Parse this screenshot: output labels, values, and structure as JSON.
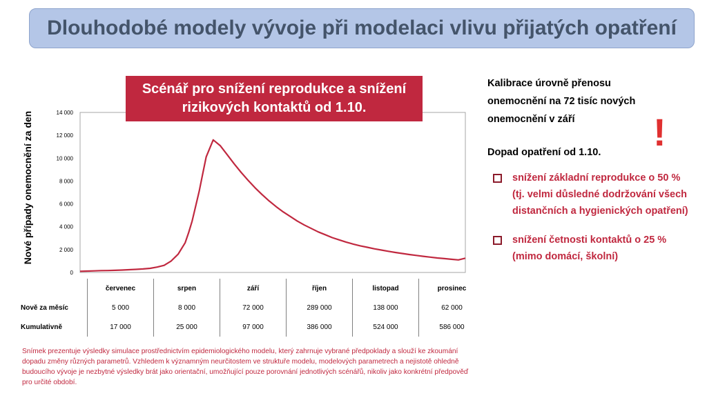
{
  "header": {
    "title": "Dlouhodobé modely vývoje při modelaci vlivu přijatých opatření"
  },
  "scenario_box": {
    "line1": "Scénář pro snížení reprodukce a snížení",
    "line2": "rizikových kontaktů od 1.10."
  },
  "chart_data": {
    "type": "line",
    "ylabel": "Nové případy onemocnění za den",
    "ylim": [
      0,
      14000
    ],
    "yticks": [
      "14 000",
      "12 000",
      "10 000",
      "8 000",
      "6 000",
      "4 000",
      "2 000",
      "0"
    ],
    "ytick_values": [
      14000,
      12000,
      10000,
      8000,
      6000,
      4000,
      2000,
      0
    ],
    "grid": false,
    "x_months": [
      "červenec",
      "srpen",
      "září",
      "říjen",
      "listopad",
      "prosinec"
    ],
    "series": [
      {
        "color": "#c0283f",
        "x": [
          0,
          10,
          20,
          30,
          40,
          50,
          60,
          70,
          80,
          90,
          100,
          110,
          120,
          130,
          140,
          145,
          150,
          155,
          160,
          165,
          170,
          175,
          180,
          190,
          200,
          210,
          220,
          230,
          240,
          250,
          260,
          270,
          280,
          290,
          300,
          310,
          320,
          330,
          340,
          350,
          360,
          370,
          380,
          390,
          400,
          410,
          420,
          430,
          440,
          450,
          460,
          470,
          480,
          490,
          500,
          510,
          520,
          530,
          540,
          550
        ],
        "y": [
          100,
          120,
          140,
          160,
          170,
          190,
          210,
          240,
          270,
          310,
          360,
          470,
          620,
          1000,
          1600,
          2100,
          2600,
          3500,
          4500,
          5800,
          7100,
          8600,
          10100,
          11600,
          11100,
          10300,
          9500,
          8750,
          8050,
          7400,
          6800,
          6250,
          5750,
          5300,
          4900,
          4500,
          4150,
          3850,
          3550,
          3300,
          3050,
          2850,
          2650,
          2480,
          2330,
          2200,
          2070,
          1960,
          1850,
          1750,
          1660,
          1570,
          1490,
          1410,
          1340,
          1270,
          1210,
          1150,
          1100,
          1250
        ]
      }
    ]
  },
  "table": {
    "months": [
      "červenec",
      "srpen",
      "září",
      "říjen",
      "listopad",
      "prosinec"
    ],
    "rows": [
      {
        "label": "Nově za měsíc",
        "values": [
          "5 000",
          "8 000",
          "72 000",
          "289 000",
          "138 000",
          "62 000"
        ]
      },
      {
        "label": "Kumulativně",
        "values": [
          "17 000",
          "25 000",
          "97 000",
          "386 000",
          "524 000",
          "586 000"
        ]
      }
    ]
  },
  "sidebar": {
    "calibration": [
      "Kalibrace úrovně přenosu",
      "onemocnění na 72 tisíc nových",
      "onemocnění v září"
    ],
    "exclamation": "!",
    "impact": "Dopad opatření od 1.10.",
    "bullets": [
      "snížení základní reprodukce o 50 % (tj. velmi důsledné dodržování všech distančních a hygienických opatření)",
      "snížení četnosti kontaktů o 25 % (mimo domácí, školní)"
    ]
  },
  "footnote": "Snímek prezentuje výsledky simulace prostřednictvím epidemiologického modelu, který zahrnuje vybrané předpoklady a slouží ke zkoumání dopadu změny různých parametrů. Vzhledem k významným neurčitostem ve struktuře modelu, modelových parametrech a nejistotě ohledně budoucího vývoje je nezbytné výsledky brát jako orientační, umožňující pouze porovnání jednotlivých scénářů, nikoliv jako konkrétní předpověď pro určité období."
}
